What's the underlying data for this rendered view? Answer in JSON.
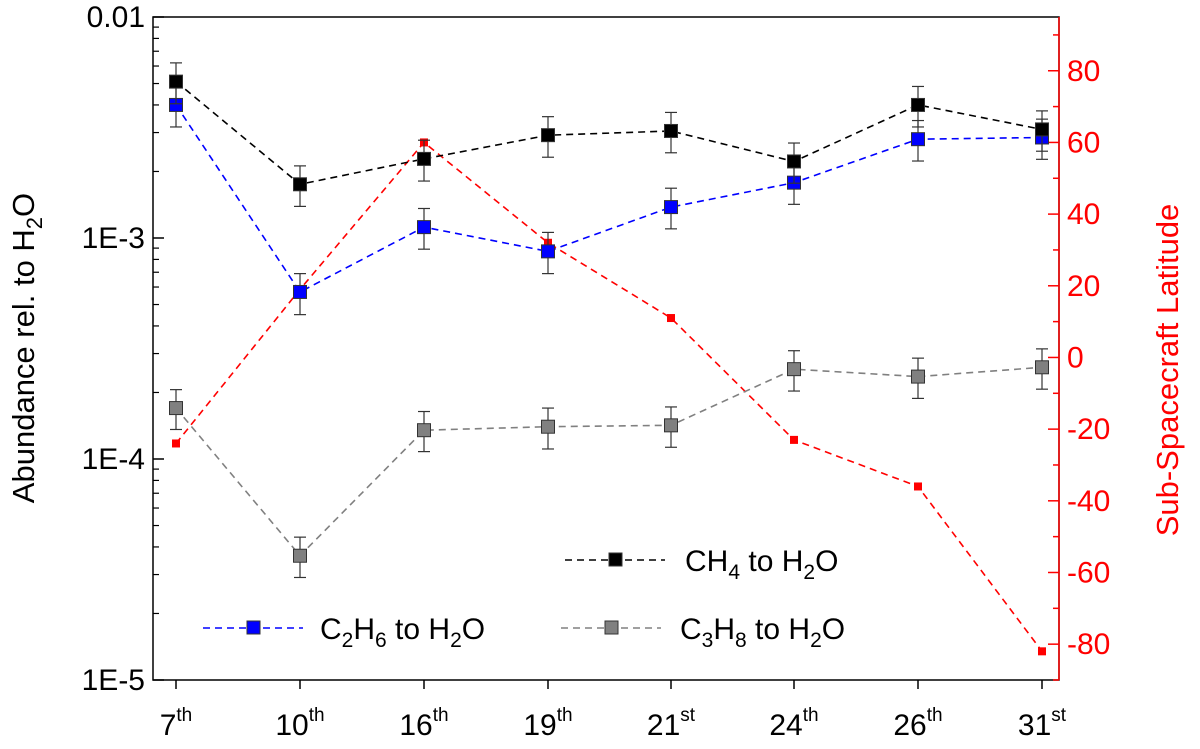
{
  "chart_data": {
    "type": "line",
    "title": "",
    "categories": [
      {
        "base": "7",
        "sup": "th"
      },
      {
        "base": "10",
        "sup": "th"
      },
      {
        "base": "16",
        "sup": "th"
      },
      {
        "base": "19",
        "sup": "th"
      },
      {
        "base": "21",
        "sup": "st"
      },
      {
        "base": "24",
        "sup": "th"
      },
      {
        "base": "26",
        "sup": "th"
      },
      {
        "base": "31",
        "sup": "st"
      }
    ],
    "xlabel": "",
    "y_left": {
      "label": {
        "pre": "Abundance rel. to H",
        "sub": "2",
        "post": "O"
      },
      "scale": "log",
      "ylim": [
        1e-05,
        0.01
      ],
      "ticks": [
        {
          "value": 0.01,
          "label": "0.01"
        },
        {
          "value": 0.001,
          "label": "1E-3"
        },
        {
          "value": 0.0001,
          "label": "1E-4"
        },
        {
          "value": 1e-05,
          "label": "1E-5"
        }
      ]
    },
    "y_right": {
      "label": "Sub-Spacecraft Latitude",
      "scale": "linear",
      "ylim": [
        -90,
        95
      ],
      "ticks": [
        80,
        60,
        40,
        20,
        0,
        -20,
        -40,
        -60,
        -80
      ],
      "color": "#ff0000"
    },
    "series": [
      {
        "name": "CH4 to H2O",
        "legend": [
          {
            "t": "CH"
          },
          {
            "t": "4",
            "sub": true
          },
          {
            "t": " to H"
          },
          {
            "t": "2",
            "sub": true
          },
          {
            "t": "O"
          }
        ],
        "axis": "left",
        "color": "#000000",
        "marker": "square",
        "values": [
          0.0051,
          0.00175,
          0.00228,
          0.00292,
          0.00305,
          0.00222,
          0.004,
          0.0031
        ],
        "err_plus": [
          0.0011,
          0.00037,
          0.00049,
          0.00062,
          0.00065,
          0.00047,
          0.00085,
          0.00066
        ],
        "err_minus": [
          0.00105,
          0.00036,
          0.00047,
          0.0006,
          0.00062,
          0.00045,
          0.00082,
          0.00063
        ]
      },
      {
        "name": "C2H6 to H2O",
        "legend": [
          {
            "t": "C"
          },
          {
            "t": "2",
            "sub": true
          },
          {
            "t": "H"
          },
          {
            "t": "6",
            "sub": true
          },
          {
            "t": " to H"
          },
          {
            "t": "2",
            "sub": true
          },
          {
            "t": "O"
          }
        ],
        "axis": "left",
        "color": "#0000ff",
        "marker": "square",
        "values": [
          0.004,
          0.00057,
          0.00112,
          0.00087,
          0.00138,
          0.00178,
          0.0028,
          0.00285
        ],
        "err_plus": [
          0.00085,
          0.00012,
          0.00024,
          0.00019,
          0.0003,
          0.00038,
          0.0006,
          0.0006
        ],
        "err_minus": [
          0.00082,
          0.00012,
          0.00023,
          0.00018,
          0.00028,
          0.00036,
          0.00057,
          0.00058
        ]
      },
      {
        "name": "C3H8 to H2O",
        "legend": [
          {
            "t": "C"
          },
          {
            "t": "3",
            "sub": true
          },
          {
            "t": "H"
          },
          {
            "t": "8",
            "sub": true
          },
          {
            "t": " to H"
          },
          {
            "t": "2",
            "sub": true
          },
          {
            "t": "O"
          }
        ],
        "axis": "left",
        "color": "#808080",
        "marker": "square",
        "values": [
          0.00017,
          3.65e-05,
          0.000135,
          0.00014,
          0.000142,
          0.000255,
          0.000236,
          0.00026
        ],
        "err_plus": [
          3.6e-05,
          7.8e-06,
          2.9e-05,
          3e-05,
          3e-05,
          5.4e-05,
          5e-05,
          5.5e-05
        ],
        "err_minus": [
          3.4e-05,
          7.4e-06,
          2.7e-05,
          2.9e-05,
          2.9e-05,
          5.2e-05,
          4.8e-05,
          5.3e-05
        ]
      },
      {
        "name": "Sub-Spacecraft Latitude",
        "axis": "right",
        "color": "#ff0000",
        "marker": "small-square",
        "values": [
          -24,
          19,
          60,
          32,
          11,
          -23,
          -36,
          -82
        ]
      }
    ],
    "legend_position": "bottom-right"
  }
}
